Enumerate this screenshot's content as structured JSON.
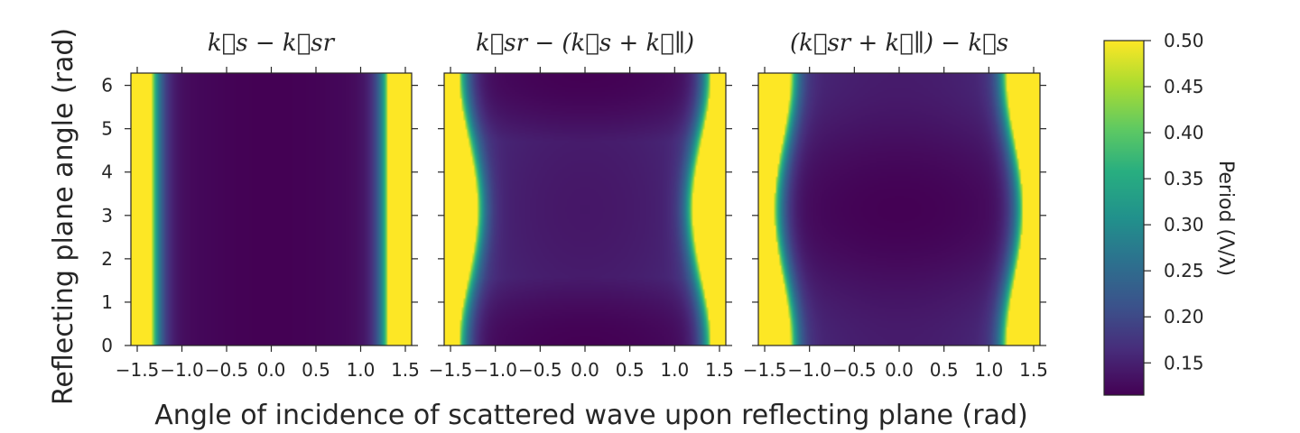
{
  "chart_data": {
    "type": "heatmap",
    "xlabel": "Angle of incidence of scattered wave upon reflecting plane (rad)",
    "ylabel": "Reflecting plane angle (rad)",
    "xlim": [
      -1.5708,
      1.5708
    ],
    "ylim": [
      0,
      6.2832
    ],
    "x_ticks": [
      "−1.5",
      "−1.0",
      "−0.5",
      "0.0",
      "0.5",
      "1.0",
      "1.5"
    ],
    "y_ticks": [
      "0",
      "1",
      "2",
      "3",
      "4",
      "5",
      "6"
    ],
    "colormap": "viridis",
    "colorbar": {
      "label": "Period (Λ/λ)",
      "range": [
        0.115,
        0.5
      ],
      "ticks": [
        "0.15",
        "0.20",
        "0.25",
        "0.30",
        "0.35",
        "0.40",
        "0.45",
        "0.50"
      ]
    },
    "panels": [
      {
        "title": "k⃗s − k⃗sr",
        "description_values": {
          "min_period": 0.115,
          "saturated_edge_x": [
            -1.33,
            1.3
          ],
          "varies_with_y": false
        }
      },
      {
        "title": "k⃗sr − (k⃗s + k⃗∥)",
        "description_values": {
          "min_period": 0.115,
          "saturated_edge_x_at_y0": [
            -1.4,
            1.4
          ],
          "saturated_edge_x_at_y3": [
            -1.2,
            1.2
          ],
          "min_location_y": [
            0.3,
            6.0
          ]
        }
      },
      {
        "title": "(k⃗sr + k⃗∥) − k⃗s",
        "description_values": {
          "min_period": 0.115,
          "saturated_edge_x_at_y0": [
            -1.2,
            1.2
          ],
          "saturated_edge_x_at_y3": [
            -1.4,
            1.38
          ],
          "min_location_y": [
            3.0
          ]
        }
      }
    ]
  }
}
